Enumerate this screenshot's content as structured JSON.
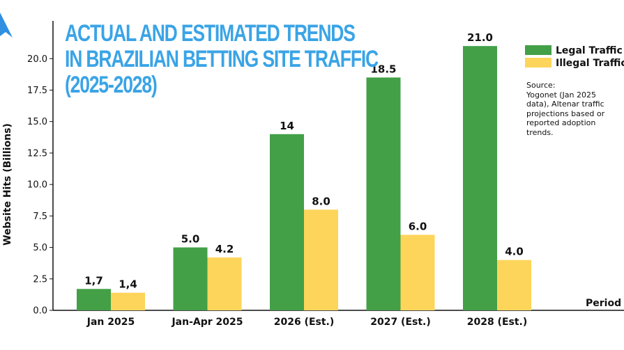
{
  "colors": {
    "legal": "#43a047",
    "illegal": "#fdd55b",
    "title": "#3aa4e6",
    "logo": "#2f8fe0",
    "axis": "#111111",
    "text": "#111111"
  },
  "logo": {
    "icon": "arrow-logo-icon"
  },
  "title_lines": [
    "ACTUAL AND ESTIMATED TRENDS",
    "IN BRAZILIAN BETTING SITE TRAFFIC",
    "(2025-2028)"
  ],
  "source_lines": [
    "Source:",
    "Yogonet (Jan 2025",
    "data), Altenar traffic",
    "projections based or",
    "reported adoption",
    "trends."
  ],
  "chart_data": {
    "type": "bar",
    "title": "ACTUAL AND ESTIMATED TRENDS IN BRAZILIAN BETTING SITE TRAFFIC (2025-2028)",
    "xlabel": "Period",
    "ylabel": "Website Hits (Billions)",
    "ylim": [
      0,
      23
    ],
    "yticks": [
      "0.0",
      "2.5",
      "5.0",
      "7.5",
      "10.0",
      "12.5",
      "15.0",
      "17.5",
      "20.0"
    ],
    "ytick_values": [
      0,
      2.5,
      5,
      7.5,
      10,
      12.5,
      15,
      17.5,
      20
    ],
    "categories": [
      "Jan 2025",
      "Jan-Apr 2025",
      "2026 (Est.)",
      "2027 (Est.)",
      "2028 (Est.)"
    ],
    "series": [
      {
        "name": "Legal Traffic",
        "values": [
          1.7,
          5.0,
          14,
          18.5,
          21.0
        ],
        "labels": [
          "1,7",
          "5.0",
          "14",
          "18.5",
          "21.0"
        ]
      },
      {
        "name": "Illegal Traffic",
        "values": [
          1.4,
          4.2,
          8.0,
          6.0,
          4.0
        ],
        "labels": [
          "1,4",
          "4.2",
          "8.0",
          "6.0",
          "4.0"
        ]
      }
    ],
    "legend": "top-right",
    "grid": false
  }
}
